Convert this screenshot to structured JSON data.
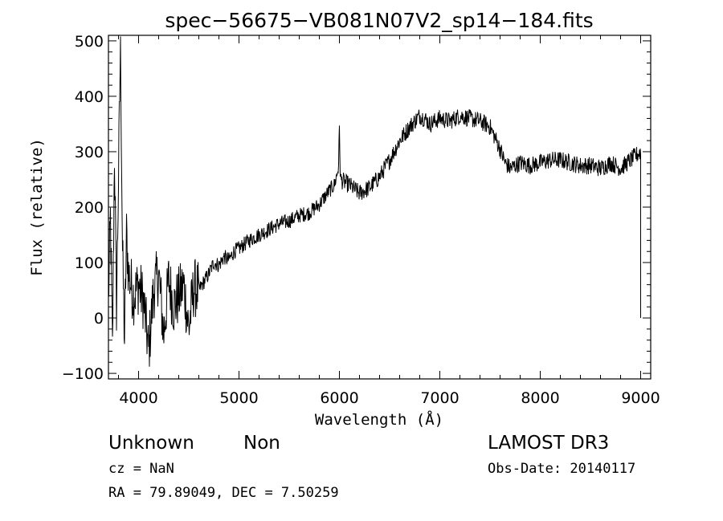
{
  "chart_data": {
    "type": "line",
    "title": "spec−56675−VB081N07V2_sp14−184.fits",
    "xlabel": "Wavelength (Å)",
    "ylabel": "Flux (relative)",
    "xlim": [
      3700,
      9100
    ],
    "ylim": [
      -110,
      510
    ],
    "xticks": [
      4000,
      5000,
      6000,
      7000,
      8000,
      9000
    ],
    "yticks": [
      -100,
      0,
      100,
      200,
      300,
      400,
      500
    ],
    "xtick_labels": [
      "4000",
      "5000",
      "6000",
      "7000",
      "8000",
      "9000"
    ],
    "ytick_labels": [
      "−100",
      "0",
      "100",
      "200",
      "300",
      "400",
      "500"
    ],
    "grid": false,
    "series": [
      {
        "x": [
          3700,
          3720,
          3740,
          3760,
          3780,
          3800,
          3820,
          3840,
          3860,
          3880,
          3900,
          3950,
          4000,
          4050,
          4100,
          4150,
          4200,
          4250,
          4300,
          4350,
          4400,
          4450,
          4500,
          4550,
          4600,
          4650,
          4700,
          4750,
          4800,
          4850,
          4900,
          4950,
          5000,
          5100,
          5200,
          5300,
          5400,
          5500,
          5600,
          5700,
          5800,
          5900,
          5950,
          5990,
          6000,
          6010,
          6050,
          6100,
          6200,
          6300,
          6400,
          6500,
          6600,
          6700,
          6800,
          6850,
          6900,
          7000,
          7100,
          7200,
          7300,
          7400,
          7500,
          7550,
          7600,
          7650,
          7700,
          7800,
          7900,
          8000,
          8100,
          8200,
          8300,
          8400,
          8500,
          8600,
          8700,
          8800,
          8900,
          9000
        ],
        "y": [
          30,
          180,
          -60,
          300,
          20,
          250,
          500,
          120,
          -40,
          150,
          80,
          40,
          60,
          30,
          -60,
          50,
          80,
          -30,
          70,
          20,
          40,
          60,
          -20,
          55,
          50,
          65,
          80,
          100,
          95,
          110,
          105,
          120,
          125,
          140,
          150,
          160,
          170,
          175,
          185,
          190,
          205,
          230,
          240,
          270,
          340,
          250,
          245,
          240,
          225,
          235,
          255,
          285,
          320,
          345,
          365,
          360,
          350,
          360,
          355,
          365,
          360,
          355,
          345,
          325,
          305,
          280,
          270,
          280,
          275,
          280,
          285,
          285,
          280,
          275,
          275,
          270,
          280,
          270,
          285,
          300
        ]
      }
    ]
  },
  "info": {
    "class": "Unknown",
    "subclass": "Non",
    "survey": "LAMOST DR3",
    "cz": "cz = NaN",
    "obs_date": "Obs-Date: 20140117",
    "coords": "RA =  79.89049, DEC =   7.50259"
  }
}
